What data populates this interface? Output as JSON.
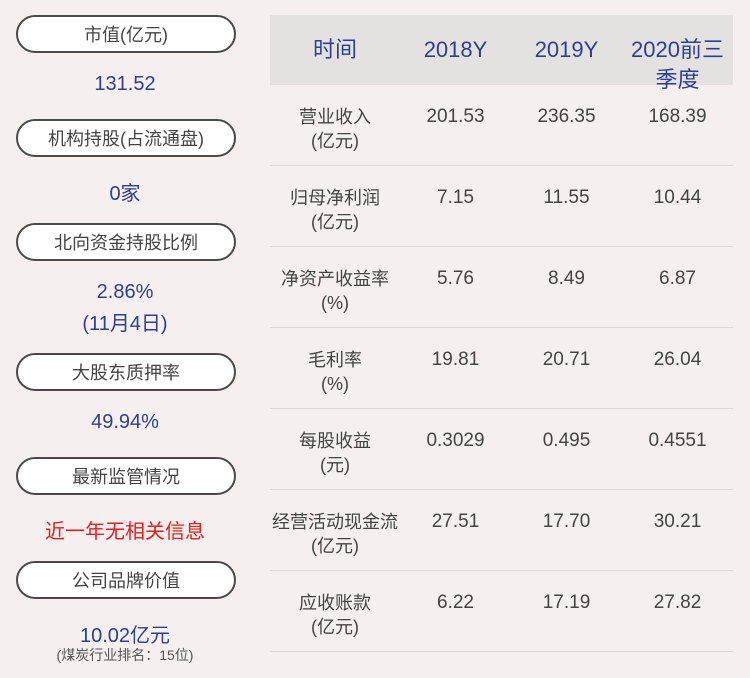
{
  "left_panel": {
    "items": [
      {
        "label": "市值(亿元)",
        "value": "131.52"
      },
      {
        "label": "机构持股(占流通盘)",
        "value": "0家"
      },
      {
        "label": "北向资金持股比例",
        "value": "2.86%",
        "value2": "(11月4日)"
      },
      {
        "label": "大股东质押率",
        "value": "49.94%"
      },
      {
        "label": "最新监管情况",
        "value": "近一年无相关信息"
      },
      {
        "label": "公司品牌价值",
        "value": "10.02亿元",
        "note": "(煤炭行业排名：15位)"
      }
    ]
  },
  "table": {
    "headers": [
      "时间",
      "2018Y",
      "2019Y",
      "2020前三季度"
    ],
    "rows": [
      {
        "label1": "营业收入",
        "label2": "(亿元)",
        "values": [
          "201.53",
          "236.35",
          "168.39"
        ]
      },
      {
        "label1": "归母净利润",
        "label2": "(亿元)",
        "values": [
          "7.15",
          "11.55",
          "10.44"
        ]
      },
      {
        "label1": "净资产收益率",
        "label2": "(%)",
        "values": [
          "5.76",
          "8.49",
          "6.87"
        ]
      },
      {
        "label1": "毛利率",
        "label2": "(%)",
        "values": [
          "19.81",
          "20.71",
          "26.04"
        ]
      },
      {
        "label1": "每股收益",
        "label2": "(元)",
        "values": [
          "0.3029",
          "0.495",
          "0.4551"
        ]
      },
      {
        "label1": "经营活动现金流",
        "label2": "(亿元)",
        "values": [
          "27.51",
          "17.70",
          "30.21"
        ]
      },
      {
        "label1": "应收账款",
        "label2": "(亿元)",
        "values": [
          "6.22",
          "17.19",
          "27.82"
        ]
      }
    ]
  },
  "colors": {
    "value_blue": "#2e3f8f",
    "alert_red": "#e02020",
    "background": "#f5f0ef"
  }
}
